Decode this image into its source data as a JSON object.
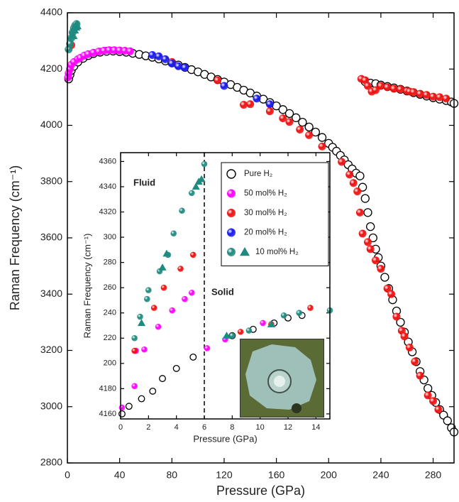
{
  "chart_data": [
    {
      "type": "scatter",
      "xlabel": "Pressure (GPa)",
      "ylabel": "Raman Frequency (cm⁻¹)",
      "xlim": [
        0,
        296
      ],
      "ylim": [
        2800,
        4400
      ],
      "xticks": [
        0,
        40,
        80,
        120,
        160,
        200,
        240,
        280
      ],
      "yticks": [
        2800,
        3000,
        3200,
        3400,
        3600,
        3800,
        4000,
        4200,
        4400
      ],
      "series": [
        {
          "color": "#000000",
          "filled": false,
          "x": [
            1,
            2,
            3,
            5,
            8,
            12,
            16,
            20,
            25,
            30,
            35,
            40,
            45,
            50,
            55,
            60,
            65,
            70,
            75,
            80,
            85,
            90,
            95,
            100,
            105,
            110,
            115,
            120,
            125,
            130,
            135,
            140,
            145,
            150,
            155,
            160,
            165,
            170,
            175,
            180,
            185,
            190,
            195,
            200,
            203,
            206,
            209,
            212,
            215,
            218,
            221,
            224,
            226,
            228,
            230,
            232,
            234,
            236,
            238,
            240,
            243,
            246,
            249,
            252,
            255,
            258,
            261,
            264,
            267,
            270,
            273,
            276,
            279,
            282,
            285,
            288,
            291,
            294,
            296,
            228,
            232,
            236,
            240,
            245,
            250,
            255,
            260,
            265,
            270,
            275,
            280,
            285,
            290,
            294,
            296
          ],
          "values": [
            4165,
            4180,
            4195,
            4210,
            4225,
            4238,
            4248,
            4255,
            4260,
            4263,
            4264,
            4262,
            4260,
            4256,
            4252,
            4247,
            4242,
            4236,
            4229,
            4222,
            4214,
            4206,
            4198,
            4190,
            4181,
            4172,
            4163,
            4154,
            4145,
            4135,
            4125,
            4115,
            4104,
            4093,
            4081,
            4069,
            4056,
            4042,
            4027,
            4011,
            3994,
            3976,
            3957,
            3936,
            3922,
            3908,
            3893,
            3877,
            3860,
            3845,
            3830,
            3820,
            3780,
            3740,
            3690,
            3640,
            3600,
            3560,
            3530,
            3500,
            3460,
            3420,
            3380,
            3340,
            3300,
            3265,
            3230,
            3195,
            3160,
            3125,
            3095,
            3065,
            3040,
            3015,
            2990,
            2970,
            2950,
            2925,
            2910,
            4155,
            4150,
            4148,
            4143,
            4138,
            4133,
            4128,
            4122,
            4116,
            4110,
            4104,
            4098,
            4093,
            4088,
            4083,
            4078
          ]
        },
        {
          "color": "#ff00ff",
          "filled": true,
          "x": [
            0.5,
            1,
            2,
            3,
            5,
            8,
            10,
            13,
            16,
            20,
            24,
            28,
            32,
            36,
            40,
            44,
            48
          ],
          "values": [
            4170,
            4185,
            4200,
            4215,
            4225,
            4235,
            4240,
            4248,
            4253,
            4258,
            4262,
            4265,
            4267,
            4267,
            4266,
            4265,
            4263
          ]
        },
        {
          "color": "#ee1111",
          "filled": true,
          "x": [
            3,
            80,
            115,
            135,
            140,
            155,
            165,
            170,
            178,
            185,
            195,
            210,
            216,
            219,
            222,
            224,
            226,
            230,
            232,
            236,
            240,
            245,
            248,
            252,
            256,
            258,
            262,
            266,
            270,
            276,
            280,
            284,
            225,
            228,
            230,
            233,
            236,
            240,
            245,
            250,
            255,
            260,
            262,
            265,
            270,
            275,
            280,
            285,
            290
          ],
          "values": [
            4285,
            4225,
            4160,
            4073,
            4075,
            4050,
            4025,
            4012,
            3985,
            3965,
            3925,
            3870,
            3825,
            3795,
            3765,
            3690,
            3615,
            3585,
            3560,
            3520,
            3490,
            3420,
            3400,
            3320,
            3270,
            3250,
            3210,
            3160,
            3110,
            3040,
            3020,
            2990,
            4165,
            4160,
            4140,
            4120,
            4125,
            4140,
            4135,
            4130,
            4128,
            4122,
            4120,
            4118,
            4112,
            4108,
            4102,
            4100,
            4095
          ]
        },
        {
          "color": "#1a1aee",
          "filled": true,
          "x": [
            65,
            70,
            75,
            80,
            85,
            90,
            120,
            145,
            155
          ],
          "values": [
            4250,
            4245,
            4235,
            4220,
            4210,
            4205,
            4140,
            4095,
            4075
          ]
        },
        {
          "color": "#1f8a80",
          "filled": true,
          "x": [
            1,
            2,
            3,
            4,
            5,
            6,
            7
          ],
          "values": [
            4270,
            4290,
            4310,
            4330,
            4345,
            4355,
            4360
          ],
          "triangles": {
            "x": [
              4,
              5,
              6,
              7
            ],
            "values": [
              4320,
              4340,
              4350,
              4355
            ]
          }
        }
      ]
    },
    {
      "type": "scatter",
      "xlabel": "Pressure (GPa)",
      "ylabel": "Raman Frequency (cm⁻¹)",
      "xlim": [
        0,
        15
      ],
      "ylim": [
        4156,
        4367
      ],
      "xticks": [
        0,
        2,
        4,
        6,
        8,
        10,
        12,
        14
      ],
      "yticks": [
        4160,
        4180,
        {
          "value": 4200,
          "label": "200"
        },
        {
          "value": 4220,
          "label": "220"
        },
        {
          "value": 4240,
          "label": "240"
        },
        {
          "value": 4260,
          "label": "260"
        },
        {
          "value": 4280,
          "label": "280"
        },
        {
          "value": 4300,
          "label": "300"
        },
        4320,
        4340,
        4360
      ],
      "vline": 6,
      "legend": true,
      "annotations": [
        "Fluid",
        "Solid"
      ],
      "series": [
        {
          "name": "Pure H₂",
          "color": "#000000",
          "filled": false,
          "x": [
            0.1,
            0.6,
            1.5,
            2.3,
            3.0,
            4.0,
            5.2,
            8.0,
            9.5,
            11.0,
            12.0,
            13.0
          ],
          "values": [
            4160,
            4166,
            4172,
            4178,
            4188,
            4196,
            4205,
            4222,
            4227,
            4232,
            4236,
            4238
          ]
        },
        {
          "name": "50 mol% H₂",
          "color": "#ff00ff",
          "filled": true,
          "x": [
            0.1,
            1.0,
            1.1,
            1.7,
            2.7,
            3.7,
            4.6,
            5.1,
            6.2,
            7.5,
            10.2
          ],
          "values": [
            4165,
            4182,
            4210,
            4211,
            4229,
            4242,
            4251,
            4256,
            4212,
            4219,
            4232
          ]
        },
        {
          "name": "30 mol% H₂",
          "color": "#ee1111",
          "filled": true,
          "x": [
            1.0,
            2.4,
            3.1,
            4.3,
            5.2,
            8.6,
            10.8,
            13.6
          ],
          "values": [
            4210,
            4244,
            4260,
            4275,
            4286,
            4225,
            4231,
            4244
          ]
        },
        {
          "name": "20 mol% H₂",
          "color": "#1a1aee",
          "filled": true,
          "x": [],
          "values": []
        },
        {
          "name": "10 mol% H₂",
          "color": "#1f8a80",
          "filled": true,
          "x": [
            1.0,
            1.4,
            2.0,
            1.9,
            2.8,
            3.4,
            3.8,
            4.4,
            5.1,
            6.0,
            8.0,
            9.2,
            11.7,
            12.8,
            15.0
          ],
          "values": [
            4220,
            4237,
            4258,
            4251,
            4273,
            4286,
            4303,
            4321,
            4335,
            4358,
            4222,
            4226,
            4238,
            4240,
            4242
          ],
          "triangles": {
            "x": [
              1.5,
              3.0,
              3.3,
              5.4,
              5.6,
              5.8,
              7.6,
              10.8
            ],
            "values": [
              4232,
              4276,
              4287,
              4340,
              4344,
              4346,
              4222,
              4231
            ]
          }
        }
      ]
    }
  ]
}
